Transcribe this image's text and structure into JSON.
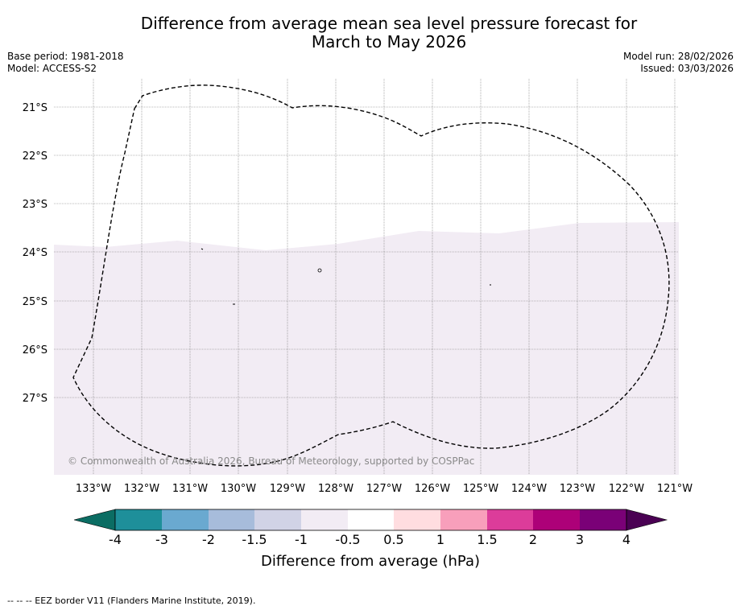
{
  "title_line1": "Difference from average mean sea level pressure forecast for",
  "title_line2": "March to May 2026",
  "base_period": "Base period: 1981-2018",
  "model": "Model: ACCESS-S2",
  "model_run": "Model run: 28/02/2026",
  "issued": "Issued: 03/03/2026",
  "map": {
    "lat_labels": [
      "21°S",
      "22°S",
      "23°S",
      "24°S",
      "25°S",
      "26°S",
      "27°S"
    ],
    "lon_labels": [
      "133°W",
      "132°W",
      "131°W",
      "130°W",
      "129°W",
      "128°W",
      "127°W",
      "126°W",
      "125°W",
      "124°W",
      "123°W",
      "122°W",
      "121°W"
    ],
    "copyright": "© Commonwealth of Australia 2026, Bureau of Meteorology, supported by COSPPac",
    "shaded_category": "-1 to -0.5",
    "border_feature": "EEZ border"
  },
  "colorbar": {
    "ticks": [
      "-4",
      "-3",
      "-2",
      "-1.5",
      "-1",
      "-0.5",
      "0.5",
      "1",
      "1.5",
      "2",
      "3",
      "4"
    ],
    "colors": [
      "#0b6d63",
      "#1e8f9a",
      "#6aa9d0",
      "#a7bcdb",
      "#d1d3e6",
      "#f2ecf4",
      "#ffffff",
      "#ffdde0",
      "#f89fbb",
      "#dc3c9a",
      "#ad0178",
      "#7a0177",
      "#4a0153"
    ],
    "label": "Difference from average (hPa)"
  },
  "footer": "--  --  -- EEZ border V11 (Flanders Marine Institute, 2019)."
}
